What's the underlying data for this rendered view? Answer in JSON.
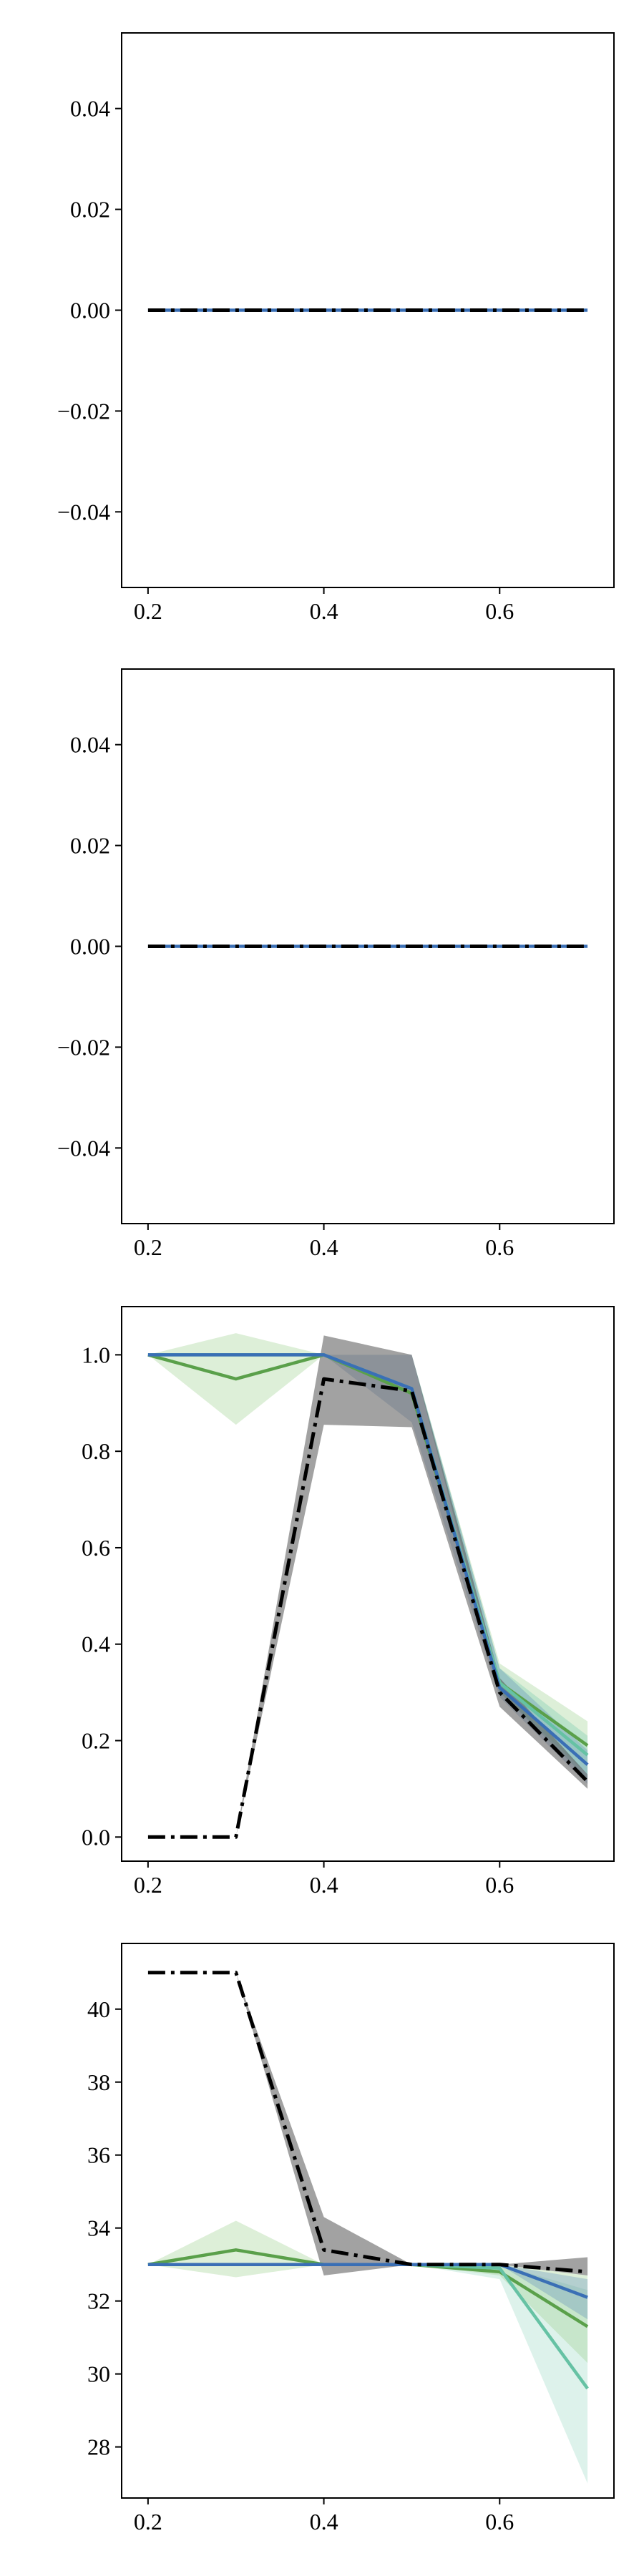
{
  "chart_data": [
    {
      "type": "line",
      "x": [
        0.2,
        0.3,
        0.4,
        0.5,
        0.6,
        0.7
      ],
      "xlim": [
        0.17,
        0.73
      ],
      "ylim": [
        -0.055,
        0.055
      ],
      "xticks": [
        0.2,
        0.4,
        0.6
      ],
      "yticks": [
        -0.04,
        -0.02,
        0.0,
        0.02,
        0.04
      ],
      "xtick_labels": [
        "0.2",
        "0.4",
        "0.6"
      ],
      "ytick_labels": [
        "−0.04",
        "−0.02",
        "0.00",
        "0.02",
        "0.04"
      ],
      "grid": false,
      "bands": [],
      "series": [
        {
          "style": "solid",
          "color": "#3a6fb5",
          "values": [
            0,
            0,
            0,
            0,
            0,
            0
          ]
        },
        {
          "style": "dashdot",
          "color": "#000000",
          "values": [
            0,
            0,
            0,
            0,
            0,
            0
          ]
        }
      ]
    },
    {
      "type": "line",
      "x": [
        0.2,
        0.3,
        0.4,
        0.5,
        0.6,
        0.7
      ],
      "xlim": [
        0.17,
        0.73
      ],
      "ylim": [
        -0.055,
        0.055
      ],
      "xticks": [
        0.2,
        0.4,
        0.6
      ],
      "yticks": [
        -0.04,
        -0.02,
        0.0,
        0.02,
        0.04
      ],
      "xtick_labels": [
        "0.2",
        "0.4",
        "0.6"
      ],
      "ytick_labels": [
        "−0.04",
        "−0.02",
        "0.00",
        "0.02",
        "0.04"
      ],
      "grid": false,
      "bands": [],
      "series": [
        {
          "style": "solid",
          "color": "#3a6fb5",
          "values": [
            0,
            0,
            0,
            0,
            0,
            0
          ]
        },
        {
          "style": "dashdot",
          "color": "#000000",
          "values": [
            0,
            0,
            0,
            0,
            0,
            0
          ]
        }
      ]
    },
    {
      "type": "line",
      "x": [
        0.2,
        0.3,
        0.4,
        0.5,
        0.6,
        0.7
      ],
      "xlim": [
        0.17,
        0.73
      ],
      "ylim": [
        -0.05,
        1.1
      ],
      "xticks": [
        0.2,
        0.4,
        0.6
      ],
      "yticks": [
        0.0,
        0.2,
        0.4,
        0.6,
        0.8,
        1.0
      ],
      "xtick_labels": [
        "0.2",
        "0.4",
        "0.6"
      ],
      "ytick_labels": [
        "0.0",
        "0.2",
        "0.4",
        "0.6",
        "0.8",
        "1.0"
      ],
      "grid": false,
      "bands": [
        {
          "color": "#9fd090",
          "opacity": 0.35,
          "lower": [
            1.0,
            0.855,
            1.0,
            1.0,
            0.3,
            0.13
          ],
          "upper": [
            1.0,
            1.045,
            1.0,
            1.0,
            0.36,
            0.24
          ]
        },
        {
          "color": "#66c2a4",
          "opacity": 0.3,
          "lower": [
            1.0,
            1.0,
            1.0,
            1.0,
            0.3,
            0.12
          ],
          "upper": [
            1.0,
            1.0,
            1.0,
            1.0,
            0.35,
            0.21
          ]
        },
        {
          "color": "#3a6fb5",
          "opacity": 0.25,
          "lower": [
            1.0,
            1.0,
            1.0,
            0.86,
            0.29,
            0.11
          ],
          "upper": [
            1.0,
            1.0,
            1.0,
            1.0,
            0.35,
            0.18
          ]
        },
        {
          "color": "#555555",
          "opacity": 0.55,
          "lower": [
            0.0,
            0.0,
            0.855,
            0.85,
            0.27,
            0.1
          ],
          "upper": [
            0.0,
            0.0,
            1.04,
            1.0,
            0.33,
            0.13
          ]
        }
      ],
      "series": [
        {
          "style": "solid",
          "color": "#5aa04a",
          "values": [
            1.0,
            0.95,
            1.0,
            0.92,
            0.32,
            0.19
          ]
        },
        {
          "style": "solid",
          "color": "#66c2a4",
          "values": [
            1.0,
            1.0,
            1.0,
            0.93,
            0.32,
            0.17
          ]
        },
        {
          "style": "solid",
          "color": "#3a6fb5",
          "values": [
            1.0,
            1.0,
            1.0,
            0.93,
            0.31,
            0.15
          ]
        },
        {
          "style": "dashdot",
          "color": "#000000",
          "values": [
            0.0,
            0.0,
            0.95,
            0.925,
            0.3,
            0.115
          ]
        }
      ]
    },
    {
      "type": "line",
      "x": [
        0.2,
        0.3,
        0.4,
        0.5,
        0.6,
        0.7
      ],
      "xlim": [
        0.17,
        0.73
      ],
      "ylim": [
        26.6,
        41.8
      ],
      "xticks": [
        0.2,
        0.4,
        0.6
      ],
      "yticks": [
        28,
        30,
        32,
        34,
        36,
        38,
        40
      ],
      "xtick_labels": [
        "0.2",
        "0.4",
        "0.6"
      ],
      "ytick_labels": [
        "28",
        "30",
        "32",
        "34",
        "36",
        "38",
        "40"
      ],
      "grid": false,
      "bands": [
        {
          "color": "#66c2a4",
          "opacity": 0.22,
          "lower": [
            33.0,
            33.0,
            33.0,
            33.0,
            32.6,
            27.0
          ],
          "upper": [
            33.0,
            33.0,
            33.0,
            33.0,
            33.0,
            32.3
          ]
        },
        {
          "color": "#9fd090",
          "opacity": 0.35,
          "lower": [
            33.0,
            32.65,
            33.0,
            33.0,
            32.7,
            30.3
          ],
          "upper": [
            33.0,
            34.2,
            33.0,
            33.0,
            33.0,
            32.7
          ]
        },
        {
          "color": "#3a6fb5",
          "opacity": 0.25,
          "lower": [
            33.0,
            33.0,
            33.0,
            33.0,
            33.0,
            31.5
          ],
          "upper": [
            33.0,
            33.0,
            33.0,
            33.0,
            33.0,
            32.6
          ]
        },
        {
          "color": "#555555",
          "opacity": 0.55,
          "lower": [
            41.0,
            41.0,
            32.7,
            33.0,
            33.0,
            32.7
          ],
          "upper": [
            41.0,
            41.0,
            34.3,
            33.0,
            33.0,
            33.2
          ]
        }
      ],
      "series": [
        {
          "style": "solid",
          "color": "#5aa04a",
          "values": [
            33.0,
            33.4,
            33.0,
            33.0,
            32.8,
            31.3
          ]
        },
        {
          "style": "solid",
          "color": "#66c2a4",
          "values": [
            33.0,
            33.0,
            33.0,
            33.0,
            32.9,
            29.6
          ]
        },
        {
          "style": "solid",
          "color": "#3a6fb5",
          "values": [
            33.0,
            33.0,
            33.0,
            33.0,
            33.0,
            32.1
          ]
        },
        {
          "style": "dashdot",
          "color": "#000000",
          "values": [
            41.0,
            41.0,
            33.4,
            33.0,
            33.0,
            32.8
          ]
        }
      ]
    }
  ]
}
